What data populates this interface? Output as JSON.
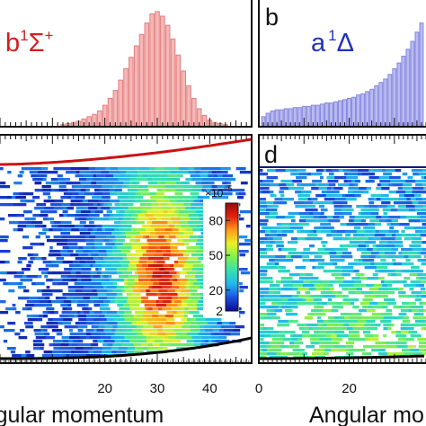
{
  "colors": {
    "b_state": "#d41d1d",
    "a_state": "#2232b8",
    "b_bar_fill": "#f7b7b7",
    "b_bar_edge": "#e07f7f",
    "a_bar_fill": "#b9baf2",
    "a_bar_edge": "#8688dc",
    "red_curve": "#cc1111",
    "black_curve": "#000000"
  },
  "chart_data": [
    {
      "type": "bar",
      "panel": "a",
      "state_label": "b ¹Σ⁺",
      "state_symbol": "b",
      "state_superscript": "1",
      "state_term": "Σ",
      "state_term_superscript": "+",
      "x": [
        7,
        8,
        9,
        10,
        11,
        12,
        13,
        14,
        15,
        16,
        17,
        18,
        19,
        20,
        21,
        22,
        23,
        24,
        25,
        26,
        27,
        28,
        29,
        30,
        31,
        32,
        33,
        34,
        35,
        36,
        37,
        38,
        39,
        40,
        41,
        42,
        43,
        44,
        45,
        46,
        47
      ],
      "values": [
        0.0,
        0.0,
        0.0,
        0.0,
        0.0,
        0.01,
        0.02,
        0.03,
        0.04,
        0.06,
        0.08,
        0.1,
        0.13,
        0.18,
        0.24,
        0.31,
        0.4,
        0.5,
        0.6,
        0.7,
        0.8,
        0.9,
        0.98,
        1.0,
        0.96,
        0.88,
        0.76,
        0.62,
        0.48,
        0.35,
        0.24,
        0.15,
        0.09,
        0.05,
        0.03,
        0.02,
        0.01,
        0.0,
        0.0,
        0.0,
        0.0
      ],
      "xlim": [
        0,
        48
      ],
      "ylim": [
        0,
        1.07
      ]
    },
    {
      "type": "bar",
      "panel": "b",
      "panel_letter": "b",
      "state_label": "a ¹Δ",
      "state_symbol": "a",
      "state_superscript": "1",
      "state_term": "Δ",
      "x": [
        1,
        2,
        3,
        4,
        5,
        6,
        7,
        8,
        9,
        10,
        11,
        12,
        13,
        14,
        15,
        16,
        17,
        18,
        19,
        20,
        21,
        22,
        23,
        24,
        25,
        26,
        27,
        28,
        29,
        30,
        31,
        32,
        33,
        34,
        35,
        36
      ],
      "values": [
        0.08,
        0.11,
        0.13,
        0.14,
        0.14,
        0.15,
        0.15,
        0.16,
        0.16,
        0.17,
        0.17,
        0.18,
        0.18,
        0.19,
        0.2,
        0.2,
        0.21,
        0.22,
        0.23,
        0.24,
        0.25,
        0.27,
        0.28,
        0.3,
        0.32,
        0.35,
        0.38,
        0.41,
        0.45,
        0.5,
        0.55,
        0.61,
        0.67,
        0.74,
        0.82,
        0.9
      ],
      "xlim": [
        0,
        37
      ],
      "ylim": [
        0,
        1.07
      ]
    },
    {
      "type": "heatmap",
      "panel": "c",
      "xlabel": "Angular momentum",
      "x_ticks": [
        20,
        30,
        40
      ],
      "xlim": [
        0,
        48
      ],
      "ylim": [
        0,
        1
      ],
      "peak_x": 30,
      "colorbar": {
        "exponent_label": "×10",
        "exponent": "−5",
        "ticks": [
          2,
          20,
          50,
          80
        ],
        "range": [
          2,
          95
        ],
        "colors": [
          "#0b0b8f",
          "#1c4fe0",
          "#22b8ee",
          "#38e0b0",
          "#7ff050",
          "#e8f02a",
          "#ff9a18",
          "#e52010",
          "#9b0a0a"
        ]
      }
    },
    {
      "type": "heatmap",
      "panel": "d",
      "panel_letter": "d",
      "xlabel": "Angular mo",
      "x_ticks": [
        0,
        20
      ],
      "xlim": [
        0,
        37
      ],
      "ylim": [
        0,
        1
      ]
    }
  ]
}
